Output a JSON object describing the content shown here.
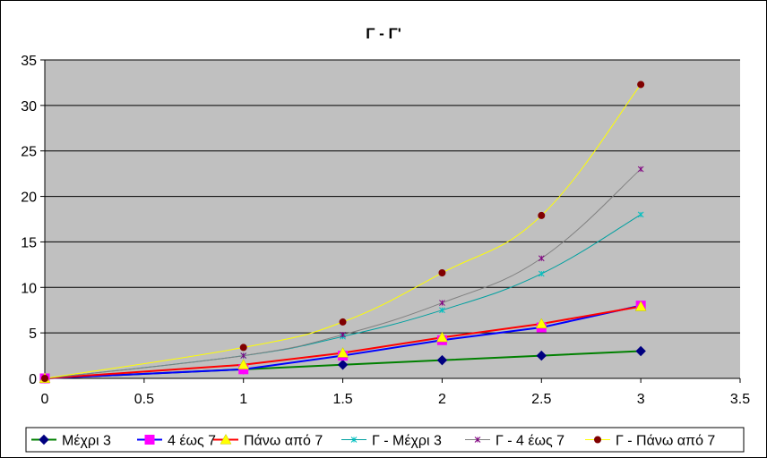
{
  "chart_data": {
    "type": "scatter",
    "title": "Γ - Γ'",
    "xlabel": "",
    "ylabel": "",
    "xlim": [
      0,
      3.5
    ],
    "ylim": [
      0,
      35
    ],
    "x_ticks": [
      0,
      0.5,
      1,
      1.5,
      2,
      2.5,
      3,
      3.5
    ],
    "y_ticks": [
      0,
      5,
      10,
      15,
      20,
      25,
      30,
      35
    ],
    "grid": true,
    "legend_position": "bottom",
    "plot_background": "#c0c0c0",
    "series": [
      {
        "name": "Μέχρι 3",
        "color": "#008000",
        "marker": "diamond",
        "marker_color": "#000080",
        "smooth": false,
        "width": 2,
        "x": [
          0,
          1,
          1.5,
          2,
          2.5,
          3
        ],
        "y": [
          0,
          1,
          1.5,
          2,
          2.5,
          3
        ]
      },
      {
        "name": "4 έως 7",
        "color": "#0000ff",
        "marker": "square",
        "marker_color": "#ff00ff",
        "smooth": false,
        "width": 2,
        "x": [
          0,
          1,
          1.5,
          2,
          2.5,
          3
        ],
        "y": [
          0,
          1,
          2.5,
          4.2,
          5.6,
          8
        ]
      },
      {
        "name": "Πάνω από 7",
        "color": "#ff0000",
        "marker": "triangle",
        "marker_color": "#ffff00",
        "smooth": false,
        "width": 2,
        "x": [
          0,
          1,
          1.5,
          2,
          2.5,
          3
        ],
        "y": [
          0,
          1.5,
          2.8,
          4.5,
          6,
          7.9
        ]
      },
      {
        "name": "Γ - Μέχρι 3",
        "color": "#00a0a0",
        "marker": "star",
        "marker_color": "#00c0c0",
        "smooth": true,
        "width": 1,
        "x": [
          0,
          1,
          1.5,
          2,
          2.5,
          3
        ],
        "y": [
          0,
          2.5,
          4.6,
          7.5,
          11.5,
          18
        ]
      },
      {
        "name": "Γ - 4 έως 7",
        "color": "#808080",
        "marker": "star",
        "marker_color": "#800080",
        "smooth": true,
        "width": 1,
        "x": [
          0,
          1,
          1.5,
          2,
          2.5,
          3
        ],
        "y": [
          0,
          2.5,
          4.8,
          8.3,
          13.2,
          23
        ]
      },
      {
        "name": "Γ - Πάνω από 7",
        "color": "#ffff00",
        "marker": "circle",
        "marker_color": "#800000",
        "smooth": true,
        "width": 1,
        "x": [
          0,
          1,
          1.5,
          2,
          2.5,
          3
        ],
        "y": [
          0,
          3.4,
          6.2,
          11.6,
          17.9,
          32.3
        ]
      }
    ]
  }
}
